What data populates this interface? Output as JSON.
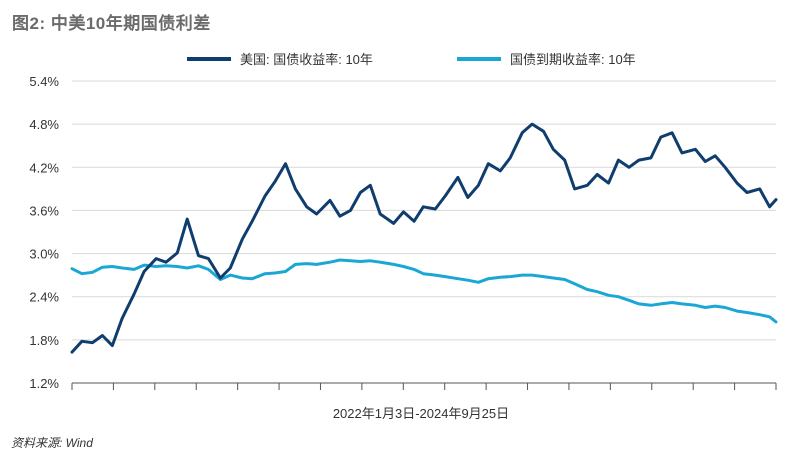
{
  "title": "图2: 中美10年期国债利差",
  "source": "资料来源: Wind",
  "legend": [
    {
      "label": "美国: 国债收益率: 10年",
      "color": "#0f3d6e"
    },
    {
      "label": "国债到期收益率: 10年",
      "color": "#1aa7d6"
    }
  ],
  "chart_data": {
    "type": "line",
    "xlabel": "2022年1月3日-2024年9月25日",
    "ylabel": "",
    "ylim": [
      1.2,
      5.4
    ],
    "yticks": [
      "1.2%",
      "1.8%",
      "2.4%",
      "3.0%",
      "3.6%",
      "4.2%",
      "4.8%",
      "5.4%"
    ],
    "grid": true,
    "legend_position": "top",
    "x": [
      "2022-01-03",
      "2022-01-17",
      "2022-02-01",
      "2022-02-15",
      "2022-03-01",
      "2022-03-15",
      "2022-04-01",
      "2022-04-15",
      "2022-05-02",
      "2022-05-16",
      "2022-06-01",
      "2022-06-15",
      "2022-07-01",
      "2022-07-15",
      "2022-08-01",
      "2022-08-15",
      "2022-09-01",
      "2022-09-15",
      "2022-10-03",
      "2022-10-17",
      "2022-11-01",
      "2022-11-15",
      "2022-12-01",
      "2022-12-15",
      "2023-01-03",
      "2023-01-17",
      "2023-02-01",
      "2023-02-15",
      "2023-03-01",
      "2023-03-15",
      "2023-04-03",
      "2023-04-17",
      "2023-05-02",
      "2023-05-15",
      "2023-06-01",
      "2023-06-15",
      "2023-07-03",
      "2023-07-17",
      "2023-08-01",
      "2023-08-15",
      "2023-09-01",
      "2023-09-15",
      "2023-10-02",
      "2023-10-16",
      "2023-11-01",
      "2023-11-15",
      "2023-12-01",
      "2023-12-15",
      "2024-01-02",
      "2024-01-16",
      "2024-02-01",
      "2024-02-15",
      "2024-03-01",
      "2024-03-15",
      "2024-04-01",
      "2024-04-15",
      "2024-05-01",
      "2024-05-15",
      "2024-06-03",
      "2024-06-17",
      "2024-07-01",
      "2024-07-15",
      "2024-08-01",
      "2024-08-15",
      "2024-09-02",
      "2024-09-16",
      "2024-09-25"
    ],
    "series": [
      {
        "name": "美国: 国债收益率: 10年",
        "color": "#0f3d6e",
        "values": [
          1.63,
          1.78,
          1.76,
          1.86,
          1.72,
          2.1,
          2.44,
          2.75,
          2.93,
          2.88,
          3.01,
          3.48,
          2.97,
          2.93,
          2.66,
          2.8,
          3.2,
          3.45,
          3.8,
          4.0,
          4.25,
          3.9,
          3.65,
          3.55,
          3.74,
          3.52,
          3.6,
          3.85,
          3.95,
          3.55,
          3.42,
          3.58,
          3.45,
          3.65,
          3.62,
          3.8,
          4.06,
          3.78,
          3.95,
          4.25,
          4.15,
          4.33,
          4.68,
          4.8,
          4.7,
          4.45,
          4.3,
          3.9,
          3.95,
          4.1,
          3.98,
          4.3,
          4.2,
          4.3,
          4.33,
          4.62,
          4.68,
          4.4,
          4.45,
          4.28,
          4.36,
          4.2,
          3.98,
          3.85,
          3.9,
          3.65,
          3.75
        ]
      },
      {
        "name": "国债到期收益率: 10年",
        "color": "#1aa7d6",
        "values": [
          2.79,
          2.72,
          2.74,
          2.81,
          2.82,
          2.8,
          2.78,
          2.84,
          2.82,
          2.83,
          2.82,
          2.8,
          2.83,
          2.78,
          2.64,
          2.7,
          2.66,
          2.65,
          2.72,
          2.73,
          2.75,
          2.85,
          2.86,
          2.85,
          2.88,
          2.91,
          2.9,
          2.89,
          2.9,
          2.88,
          2.85,
          2.82,
          2.78,
          2.72,
          2.7,
          2.68,
          2.65,
          2.63,
          2.6,
          2.65,
          2.67,
          2.68,
          2.7,
          2.7,
          2.68,
          2.66,
          2.64,
          2.58,
          2.5,
          2.47,
          2.42,
          2.4,
          2.35,
          2.3,
          2.28,
          2.3,
          2.32,
          2.3,
          2.28,
          2.25,
          2.27,
          2.25,
          2.2,
          2.18,
          2.15,
          2.12,
          2.05
        ]
      }
    ]
  }
}
